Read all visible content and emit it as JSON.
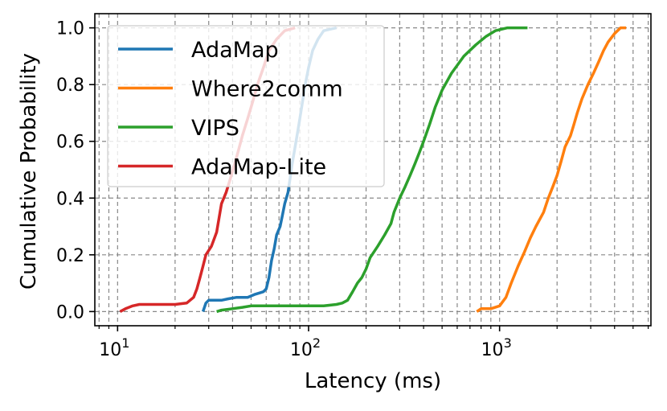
{
  "chart_data": {
    "type": "line",
    "title": "",
    "xlabel": "Latency (ms)",
    "ylabel": "Cumulative Probability",
    "xscale": "log",
    "xlim": [
      7.6,
      6200
    ],
    "ylim": [
      -0.05,
      1.05
    ],
    "xticks": [
      {
        "value": 10,
        "base": "10",
        "exp": "1"
      },
      {
        "value": 100,
        "base": "10",
        "exp": "2"
      },
      {
        "value": 1000,
        "base": "10",
        "exp": "3"
      }
    ],
    "yticks": [
      {
        "value": 0.0,
        "label": "0.0"
      },
      {
        "value": 0.2,
        "label": "0.2"
      },
      {
        "value": 0.4,
        "label": "0.4"
      },
      {
        "value": 0.6,
        "label": "0.6"
      },
      {
        "value": 0.8,
        "label": "0.8"
      },
      {
        "value": 1.0,
        "label": "1.0"
      }
    ],
    "grid": true,
    "grid_minor": true,
    "legend": {
      "placement": "top-left"
    },
    "series": [
      {
        "name": "AdaMap",
        "color": "#1f77b4",
        "points": [
          [
            28,
            0.0
          ],
          [
            29,
            0.03
          ],
          [
            30,
            0.04
          ],
          [
            35,
            0.04
          ],
          [
            38,
            0.045
          ],
          [
            42,
            0.05
          ],
          [
            48,
            0.05
          ],
          [
            52,
            0.06
          ],
          [
            55,
            0.065
          ],
          [
            58,
            0.07
          ],
          [
            60,
            0.08
          ],
          [
            62,
            0.12
          ],
          [
            64,
            0.18
          ],
          [
            66,
            0.22
          ],
          [
            68,
            0.27
          ],
          [
            71,
            0.3
          ],
          [
            73,
            0.34
          ],
          [
            75,
            0.38
          ],
          [
            78,
            0.42
          ],
          [
            80,
            0.47
          ],
          [
            82,
            0.52
          ],
          [
            84,
            0.56
          ],
          [
            86,
            0.6
          ],
          [
            88,
            0.64
          ],
          [
            90,
            0.68
          ],
          [
            93,
            0.74
          ],
          [
            96,
            0.8
          ],
          [
            100,
            0.86
          ],
          [
            105,
            0.92
          ],
          [
            112,
            0.96
          ],
          [
            120,
            0.99
          ],
          [
            140,
            1.0
          ]
        ]
      },
      {
        "name": "Where2comm",
        "color": "#ff7f0e",
        "points": [
          [
            760,
            0.0
          ],
          [
            800,
            0.01
          ],
          [
            900,
            0.01
          ],
          [
            1000,
            0.02
          ],
          [
            1080,
            0.05
          ],
          [
            1150,
            0.1
          ],
          [
            1250,
            0.16
          ],
          [
            1350,
            0.21
          ],
          [
            1450,
            0.26
          ],
          [
            1550,
            0.3
          ],
          [
            1700,
            0.35
          ],
          [
            1800,
            0.4
          ],
          [
            1900,
            0.44
          ],
          [
            2000,
            0.48
          ],
          [
            2100,
            0.53
          ],
          [
            2200,
            0.58
          ],
          [
            2350,
            0.62
          ],
          [
            2450,
            0.66
          ],
          [
            2550,
            0.7
          ],
          [
            2700,
            0.75
          ],
          [
            2900,
            0.8
          ],
          [
            3100,
            0.84
          ],
          [
            3300,
            0.88
          ],
          [
            3500,
            0.92
          ],
          [
            3700,
            0.95
          ],
          [
            4000,
            0.98
          ],
          [
            4300,
            1.0
          ],
          [
            4600,
            1.0
          ]
        ]
      },
      {
        "name": "VIPS",
        "color": "#2ca02c",
        "points": [
          [
            33,
            0.0
          ],
          [
            35,
            0.005
          ],
          [
            40,
            0.01
          ],
          [
            45,
            0.015
          ],
          [
            50,
            0.02
          ],
          [
            60,
            0.02
          ],
          [
            80,
            0.02
          ],
          [
            100,
            0.02
          ],
          [
            120,
            0.02
          ],
          [
            140,
            0.025
          ],
          [
            150,
            0.03
          ],
          [
            160,
            0.04
          ],
          [
            170,
            0.07
          ],
          [
            180,
            0.1
          ],
          [
            190,
            0.12
          ],
          [
            200,
            0.15
          ],
          [
            210,
            0.19
          ],
          [
            230,
            0.23
          ],
          [
            250,
            0.27
          ],
          [
            270,
            0.31
          ],
          [
            280,
            0.35
          ],
          [
            300,
            0.4
          ],
          [
            320,
            0.44
          ],
          [
            340,
            0.48
          ],
          [
            360,
            0.52
          ],
          [
            380,
            0.56
          ],
          [
            400,
            0.6
          ],
          [
            430,
            0.66
          ],
          [
            460,
            0.72
          ],
          [
            500,
            0.78
          ],
          [
            560,
            0.84
          ],
          [
            650,
            0.9
          ],
          [
            750,
            0.94
          ],
          [
            850,
            0.97
          ],
          [
            950,
            0.99
          ],
          [
            1100,
            1.0
          ],
          [
            1400,
            1.0
          ]
        ]
      },
      {
        "name": "AdaMap-Lite",
        "color": "#d62728",
        "points": [
          [
            10.3,
            0.0
          ],
          [
            11,
            0.01
          ],
          [
            12,
            0.02
          ],
          [
            13,
            0.025
          ],
          [
            15,
            0.025
          ],
          [
            20,
            0.025
          ],
          [
            23,
            0.03
          ],
          [
            25,
            0.05
          ],
          [
            26,
            0.08
          ],
          [
            27,
            0.12
          ],
          [
            28,
            0.16
          ],
          [
            29,
            0.2
          ],
          [
            31,
            0.23
          ],
          [
            33,
            0.28
          ],
          [
            34,
            0.33
          ],
          [
            35,
            0.38
          ],
          [
            37,
            0.42
          ],
          [
            39,
            0.47
          ],
          [
            41,
            0.52
          ],
          [
            43,
            0.57
          ],
          [
            45,
            0.62
          ],
          [
            48,
            0.68
          ],
          [
            51,
            0.74
          ],
          [
            54,
            0.8
          ],
          [
            58,
            0.86
          ],
          [
            62,
            0.92
          ],
          [
            68,
            0.96
          ],
          [
            75,
            0.99
          ],
          [
            85,
            1.0
          ]
        ]
      }
    ]
  }
}
